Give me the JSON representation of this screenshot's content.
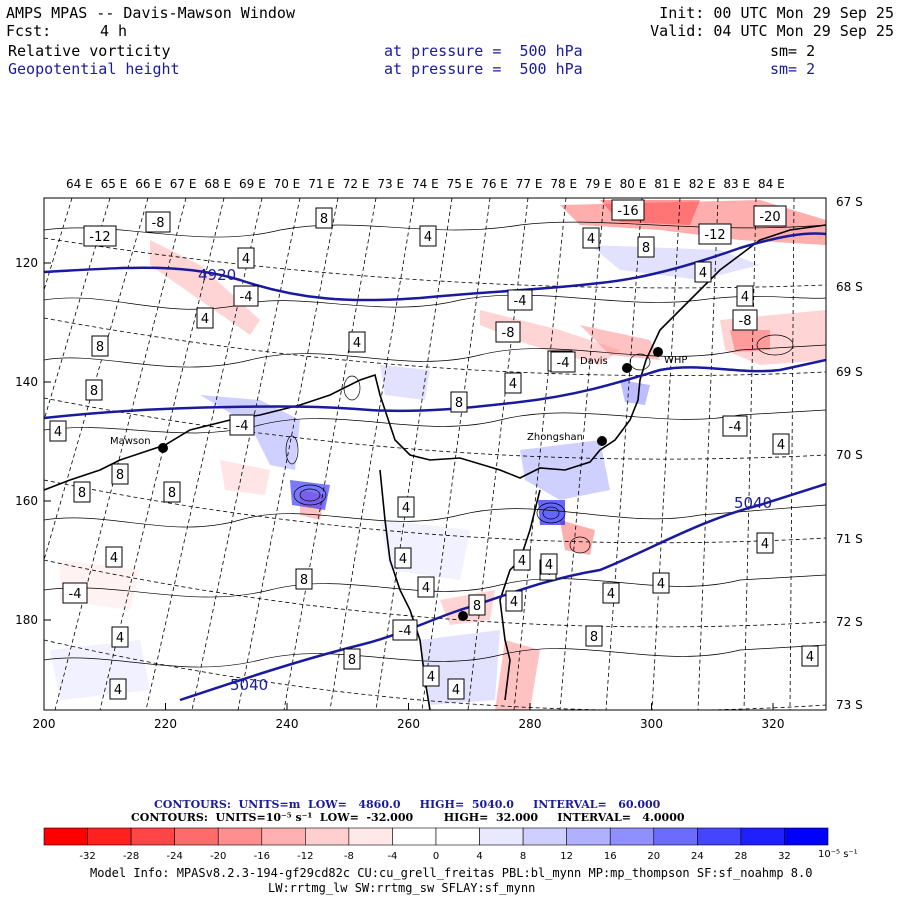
{
  "header": {
    "title": "AMPS MPAS -- Davis-Mawson Window",
    "init": "Init: 00 UTC Mon 29 Sep 25",
    "fcst_label": "Fcst:",
    "fcst_value": "4 h",
    "valid": "Valid: 04 UTC Mon 29 Sep 25",
    "field1": {
      "name": "Relative vorticity",
      "level": "at pressure =  500 hPa",
      "smooth": "sm= 2"
    },
    "field2": {
      "name": "Geopotential height",
      "level": "at pressure =  500 hPa",
      "smooth": "sm= 2"
    }
  },
  "axes": {
    "top_lon": [
      "64 E",
      "65 E",
      "66 E",
      "67 E",
      "68 E",
      "69 E",
      "70 E",
      "71 E",
      "72 E",
      "73 E",
      "74 E",
      "75 E",
      "76 E",
      "77 E",
      "78 E",
      "79 E",
      "80 E",
      "81 E",
      "82 E",
      "83 E",
      "84 E"
    ],
    "right_lat": [
      "67 S",
      "68 S",
      "69 S",
      "70 S",
      "71 S",
      "72 S",
      "73 S"
    ],
    "bottom_x": [
      "200",
      "220",
      "240",
      "260",
      "280",
      "300",
      "320"
    ],
    "left_y": [
      "120",
      "140",
      "160",
      "180"
    ]
  },
  "map_labels": {
    "stations": [
      "Mawson",
      "Davis",
      "WHP",
      "Zhongshan"
    ],
    "height_contours": [
      "4920",
      "5040",
      "5040"
    ],
    "vort_labels": [
      "-8",
      "8",
      "-12",
      "4",
      "4",
      "-4",
      "4",
      "8",
      "8",
      "4",
      "-4",
      "4",
      "8",
      "4",
      "-4",
      "4",
      "8",
      "8",
      "-16",
      "4",
      "-12",
      "-20",
      "8",
      "-8",
      "-4",
      "-8",
      "-4",
      "8",
      "4",
      "8",
      "4",
      "4",
      "4",
      "-4",
      "4",
      "4",
      "4",
      "8",
      "4",
      "-4",
      "4",
      "4",
      "4",
      "4",
      "8",
      "4",
      "8",
      "4",
      "4",
      "4",
      "4",
      "4",
      "4",
      "-4"
    ]
  },
  "contour_info": {
    "line1": "CONTOURS:  UNITS=m  LOW=   4860.0     HIGH=  5040.0     INTERVAL=   60.000",
    "line2": "CONTOURS:  UNITS=10⁻⁵ s⁻¹  LOW=  -32.000        HIGH=  32.000     INTERVAL=   4.0000"
  },
  "colorbar": {
    "ticks": [
      "-32",
      "-28",
      "-24",
      "-20",
      "-16",
      "-12",
      "-8",
      "-4",
      "0",
      "4",
      "8",
      "12",
      "16",
      "20",
      "24",
      "28",
      "32"
    ],
    "units": "10⁻⁵ s⁻¹",
    "colors": [
      "#ff0000",
      "#ff2020",
      "#ff4545",
      "#ff6b6b",
      "#ff8f8f",
      "#ffb0b0",
      "#ffcfcf",
      "#ffe8e8",
      "#ffffff",
      "#ffffff",
      "#e8e8ff",
      "#cfcfff",
      "#b0b0ff",
      "#8f8fff",
      "#6b6bff",
      "#4545ff",
      "#2020ff",
      "#0000ff"
    ]
  },
  "model_info": {
    "line1": "Model Info: MPASv8.2.3-194-gf29cd82c CU:cu_grell_freitas PBL:bl_mynn MP:mp_thompson SF:sf_noahmp 8.0",
    "line2": "LW:rrtmg_lw SW:rrtmg_sw SFLAY:sf_mynn"
  }
}
